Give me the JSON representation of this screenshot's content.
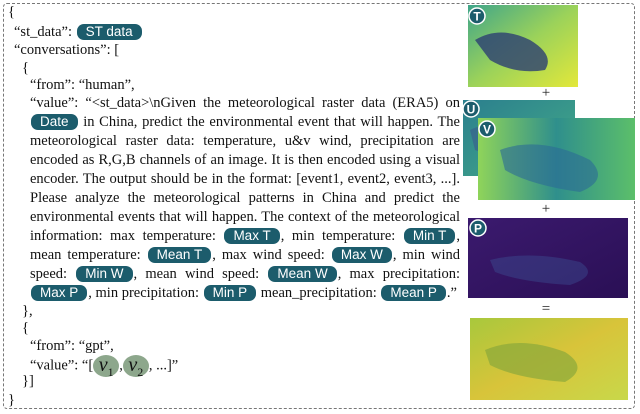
{
  "open_brace": "{",
  "st_data_key": "“st_data”:",
  "st_data_badge": "ST data",
  "conversations_key": "“conversations”: [",
  "human": {
    "open": "{",
    "from": "“from”: “human”,",
    "value_parts": [
      {
        "text": "“value”: “<st_data>\\nGiven the meteorological raster data (ERA5) on "
      },
      {
        "badge": "Date"
      },
      {
        "text": " in China, predict the environmental event that will happen. The meteorological raster data: temperature, u&v wind, precipitation are encoded as R,G,B channels of an image. It is then encoded using a visual encoder. The output should be in the format: [event1, event2, event3, ...]. Please analyze the meteorological patterns in China and predict the environmental events that will happen. The context of the meteorological information: max temperature: "
      },
      {
        "badge": "Max T"
      },
      {
        "text": ", min temperature: "
      },
      {
        "badge": "Min T"
      },
      {
        "text": ", mean temperature: "
      },
      {
        "badge": "Mean T"
      },
      {
        "text": ", max wind speed: "
      },
      {
        "badge": "Max W"
      },
      {
        "text": ", min wind speed: "
      },
      {
        "badge": "Min W"
      },
      {
        "text": ", mean wind speed: "
      },
      {
        "badge": "Mean W"
      },
      {
        "text": ", max precipitation: "
      },
      {
        "badge": "Max P"
      },
      {
        "text": ", min precipitation: "
      },
      {
        "badge": "Min P"
      },
      {
        "text": " mean_precipitation: "
      },
      {
        "badge": "Mean P"
      },
      {
        "text": ".”"
      }
    ],
    "close": "},"
  },
  "gpt": {
    "open": "{",
    "from": "“from”: “gpt”,",
    "value_prefix": "“value”: “[",
    "v1": "v",
    "v1_sub": "1",
    "comma": ",",
    "v2": "v",
    "v2_sub": "2",
    "value_suffix": ", ...]”"
  },
  "close_bracket": "}]",
  "close_brace": "}",
  "images": [
    "T",
    "U",
    "V",
    "P"
  ],
  "operators": [
    "+",
    "+",
    "="
  ]
}
